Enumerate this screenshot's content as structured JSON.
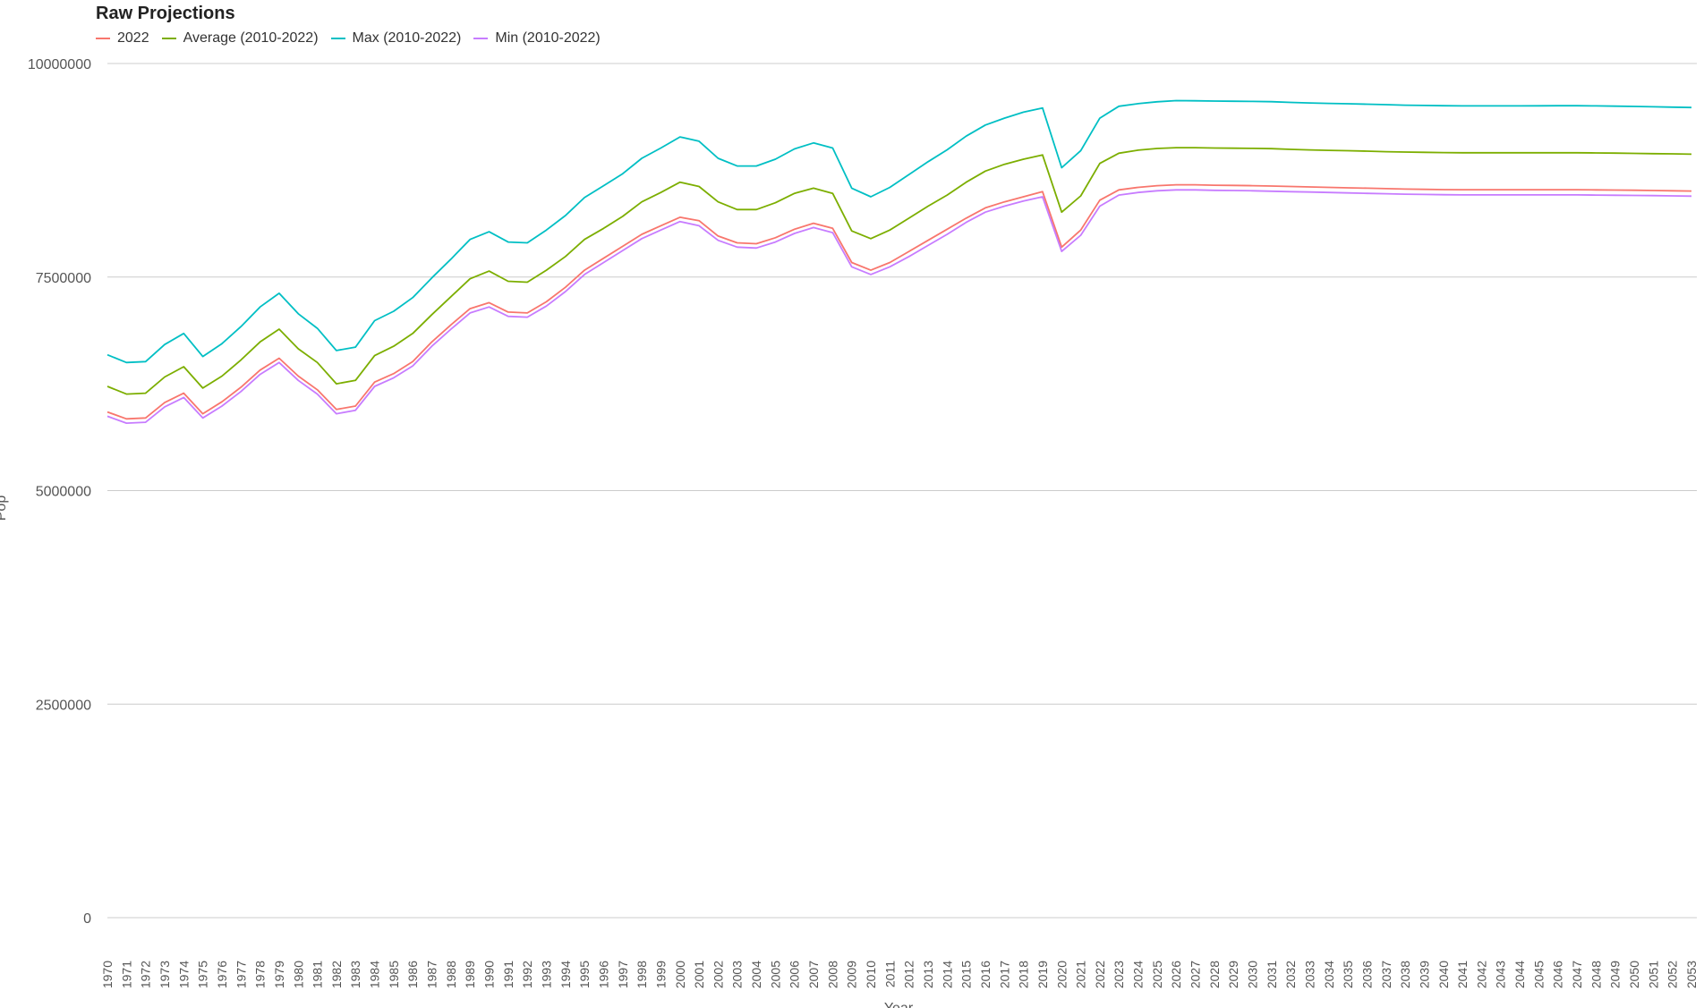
{
  "chart_data": {
    "type": "line",
    "title": "Raw Projections",
    "xlabel": "Year",
    "ylabel": "Pop",
    "ylim": [
      0,
      10000000
    ],
    "yticks": [
      0,
      2500000,
      5000000,
      7500000,
      10000000
    ],
    "grid": true,
    "legend_position": "top-left",
    "x": [
      1970,
      1971,
      1972,
      1973,
      1974,
      1975,
      1976,
      1977,
      1978,
      1979,
      1980,
      1981,
      1982,
      1983,
      1984,
      1985,
      1986,
      1987,
      1988,
      1989,
      1990,
      1991,
      1992,
      1993,
      1994,
      1995,
      1996,
      1997,
      1998,
      1999,
      2000,
      2001,
      2002,
      2003,
      2004,
      2005,
      2006,
      2007,
      2008,
      2009,
      2010,
      2011,
      2012,
      2013,
      2014,
      2015,
      2016,
      2017,
      2018,
      2019,
      2020,
      2021,
      2022,
      2023,
      2024,
      2025,
      2026,
      2027,
      2028,
      2029,
      2030,
      2031,
      2032,
      2033,
      2034,
      2035,
      2036,
      2037,
      2038,
      2039,
      2040,
      2041,
      2042,
      2043,
      2044,
      2045,
      2046,
      2047,
      2048,
      2049,
      2050,
      2051,
      2052,
      2053
    ],
    "series": [
      {
        "name": "2022",
        "color": "#f8766d",
        "values": [
          5920000,
          5840000,
          5850000,
          6030000,
          6140000,
          5900000,
          6040000,
          6210000,
          6410000,
          6550000,
          6340000,
          6180000,
          5950000,
          5990000,
          6270000,
          6370000,
          6510000,
          6740000,
          6940000,
          7130000,
          7200000,
          7090000,
          7080000,
          7210000,
          7380000,
          7580000,
          7720000,
          7860000,
          8000000,
          8100000,
          8200000,
          8160000,
          7980000,
          7900000,
          7890000,
          7960000,
          8060000,
          8130000,
          8070000,
          7670000,
          7580000,
          7670000,
          7800000,
          7930000,
          8060000,
          8190000,
          8310000,
          8380000,
          8440000,
          8500000,
          7850000,
          8050000,
          8400000,
          8520000,
          8550000,
          8570000,
          8580000,
          8580000,
          8575000,
          8573000,
          8570000,
          8565000,
          8560000,
          8555000,
          8550000,
          8545000,
          8540000,
          8535000,
          8530000,
          8527000,
          8524000,
          8522000,
          8522000,
          8522000,
          8522000,
          8522000,
          8522000,
          8522000,
          8520000,
          8518000,
          8516000,
          8513000,
          8510000,
          8507000
        ]
      },
      {
        "name": "Average (2010-2022)",
        "color": "#7cae00",
        "values": [
          6220000,
          6130000,
          6140000,
          6330000,
          6450000,
          6200000,
          6340000,
          6530000,
          6740000,
          6890000,
          6660000,
          6500000,
          6250000,
          6290000,
          6580000,
          6690000,
          6840000,
          7060000,
          7270000,
          7480000,
          7570000,
          7450000,
          7440000,
          7580000,
          7740000,
          7940000,
          8070000,
          8210000,
          8380000,
          8490000,
          8610000,
          8560000,
          8380000,
          8290000,
          8290000,
          8370000,
          8480000,
          8540000,
          8480000,
          8040000,
          7950000,
          8050000,
          8190000,
          8330000,
          8460000,
          8610000,
          8740000,
          8820000,
          8880000,
          8930000,
          8260000,
          8450000,
          8830000,
          8950000,
          8985000,
          9005000,
          9015000,
          9015000,
          9010000,
          9008000,
          9006000,
          9003000,
          8995000,
          8988000,
          8983000,
          8979000,
          8974000,
          8968000,
          8963000,
          8960000,
          8957000,
          8955000,
          8955000,
          8955000,
          8955000,
          8955000,
          8955000,
          8955000,
          8953000,
          8951000,
          8948000,
          8945000,
          8942000,
          8938000
        ]
      },
      {
        "name": "Max (2010-2022)",
        "color": "#00bfc4",
        "values": [
          6590000,
          6500000,
          6510000,
          6710000,
          6840000,
          6570000,
          6720000,
          6920000,
          7150000,
          7310000,
          7070000,
          6900000,
          6640000,
          6680000,
          6990000,
          7100000,
          7260000,
          7490000,
          7710000,
          7940000,
          8030000,
          7910000,
          7900000,
          8050000,
          8220000,
          8430000,
          8570000,
          8710000,
          8890000,
          9010000,
          9140000,
          9090000,
          8890000,
          8800000,
          8800000,
          8880000,
          9000000,
          9070000,
          9010000,
          8540000,
          8440000,
          8550000,
          8700000,
          8850000,
          8990000,
          9150000,
          9280000,
          9360000,
          9430000,
          9480000,
          8780000,
          8980000,
          9360000,
          9500000,
          9530000,
          9552000,
          9565000,
          9563000,
          9560000,
          9558000,
          9556000,
          9553000,
          9545000,
          9538000,
          9533000,
          9529000,
          9524000,
          9518000,
          9512000,
          9509000,
          9506000,
          9504000,
          9504000,
          9504000,
          9504000,
          9505000,
          9506000,
          9506000,
          9504000,
          9501000,
          9497000,
          9493000,
          9489000,
          9485000
        ]
      },
      {
        "name": "Min (2010-2022)",
        "color": "#c77cff",
        "values": [
          5870000,
          5790000,
          5800000,
          5980000,
          6090000,
          5850000,
          5990000,
          6160000,
          6360000,
          6500000,
          6290000,
          6130000,
          5900000,
          5940000,
          6220000,
          6320000,
          6460000,
          6690000,
          6890000,
          7080000,
          7150000,
          7040000,
          7030000,
          7160000,
          7330000,
          7530000,
          7670000,
          7810000,
          7950000,
          8050000,
          8150000,
          8100000,
          7930000,
          7850000,
          7840000,
          7910000,
          8010000,
          8080000,
          8020000,
          7620000,
          7530000,
          7620000,
          7740000,
          7870000,
          8000000,
          8140000,
          8260000,
          8330000,
          8390000,
          8440000,
          7800000,
          7990000,
          8330000,
          8460000,
          8490000,
          8510000,
          8520000,
          8520000,
          8515000,
          8513000,
          8510000,
          8505000,
          8500000,
          8495000,
          8490000,
          8485000,
          8480000,
          8475000,
          8470000,
          8467000,
          8464000,
          8462000,
          8462000,
          8462000,
          8462000,
          8462000,
          8462000,
          8462000,
          8460000,
          8458000,
          8456000,
          8453000,
          8450000,
          8447000
        ]
      }
    ]
  }
}
